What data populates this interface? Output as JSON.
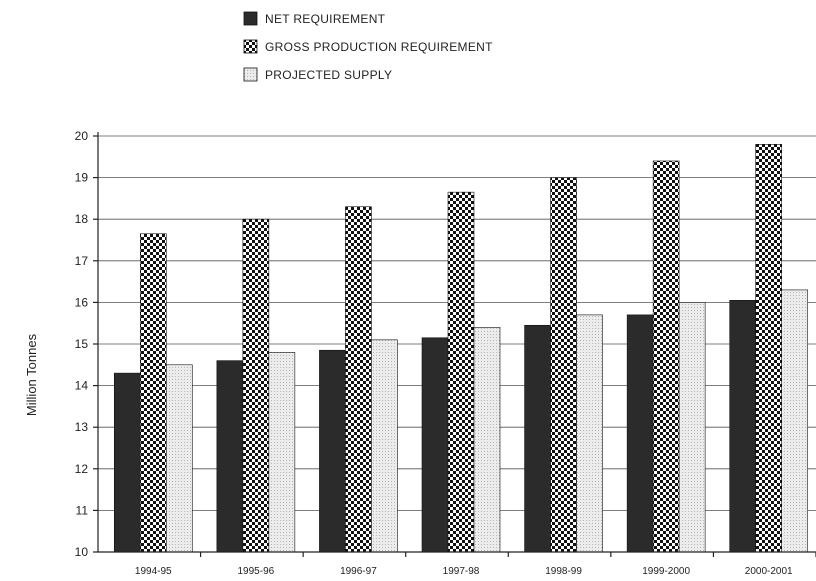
{
  "chart_data": {
    "type": "bar",
    "ylabel": "Million Tonnes",
    "ylim": [
      10,
      20
    ],
    "yticks": [
      10,
      11,
      12,
      13,
      14,
      15,
      16,
      17,
      18,
      19,
      20
    ],
    "grid": true,
    "legend_position": "top-left",
    "categories": [
      "1994-95",
      "1995-96",
      "1996-97",
      "1997-98",
      "1998-99",
      "1999-2000",
      "2000-2001"
    ],
    "series": [
      {
        "name": "NET REQUIREMENT",
        "pattern": "solid-dark",
        "color": "#2b2b2b",
        "values": [
          14.3,
          14.6,
          14.85,
          15.15,
          15.45,
          15.7,
          16.05
        ]
      },
      {
        "name": "GROSS PRODUCTION REQUIREMENT",
        "pattern": "checkerboard",
        "color": "#1a1a1a",
        "values": [
          17.65,
          18.0,
          18.3,
          18.65,
          19.0,
          19.4,
          19.8
        ]
      },
      {
        "name": "PROJECTED SUPPLY",
        "pattern": "light-dotted",
        "color": "#e6e6e6",
        "values": [
          14.5,
          14.8,
          15.1,
          15.4,
          15.7,
          16.0,
          16.3
        ]
      }
    ]
  }
}
